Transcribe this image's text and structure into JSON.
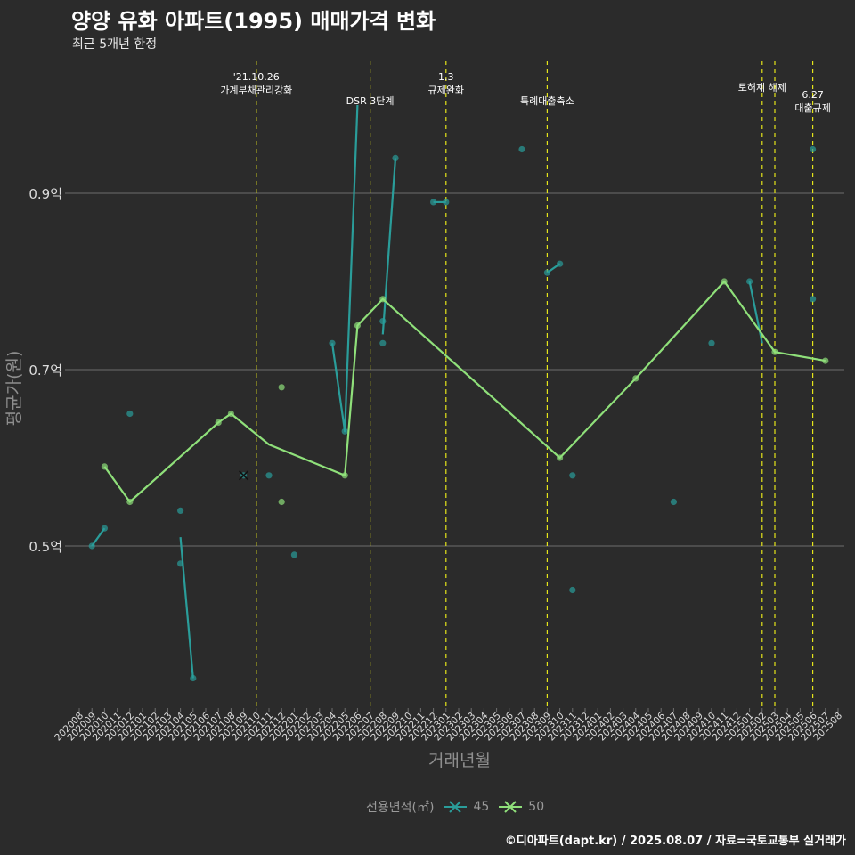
{
  "title": "양양 유화 아파트(1995) 매매가격 변화",
  "subtitle": "최근 5개년 한정",
  "caption": "©디아파트(dapt.kr) / 2025.08.07 / 자료=국토교통부 실거래가",
  "colors": {
    "background": "#2b2b2b",
    "grid": "#6e6e6e",
    "series_45": "#2a9d9a",
    "series_50": "#8fe07a",
    "event_line": "#e5e51a",
    "axis_text": "#dcdcdc",
    "axis_title": "#8e8e8e"
  },
  "chart_data": {
    "type": "line",
    "title": "양양 유화 아파트(1995) 매매가격 변화",
    "subtitle": "최근 5개년 한정",
    "xlabel": "거래년월",
    "ylabel": "평균가(원)",
    "y_ticks": [
      {
        "value": 0.5,
        "label": "0.5억"
      },
      {
        "value": 0.7,
        "label": "0.7억"
      },
      {
        "value": 0.9,
        "label": "0.9억"
      }
    ],
    "ylim": [
      0.33,
      1.0
    ],
    "grid": "horizontal",
    "legend_title": "전용면적(㎡)",
    "legend_position": "bottom",
    "x_categories": [
      "202008",
      "202009",
      "202010",
      "202011",
      "202012",
      "202101",
      "202102",
      "202103",
      "202104",
      "202105",
      "202106",
      "202107",
      "202108",
      "202109",
      "202110",
      "202111",
      "202112",
      "202201",
      "202202",
      "202203",
      "202204",
      "202205",
      "202206",
      "202207",
      "202208",
      "202209",
      "202210",
      "202211",
      "202212",
      "202301",
      "202302",
      "202303",
      "202304",
      "202305",
      "202306",
      "202307",
      "202308",
      "202309",
      "202310",
      "202311",
      "202312",
      "202401",
      "202402",
      "202403",
      "202404",
      "202405",
      "202406",
      "202407",
      "202408",
      "202409",
      "202410",
      "202411",
      "202412",
      "202501",
      "202502",
      "202503",
      "202504",
      "202505",
      "202506",
      "202507",
      "202508"
    ],
    "events": [
      {
        "x": "202110",
        "label": "'21.10.26\n가계부채관리강화",
        "label_row": 0
      },
      {
        "x": "202207",
        "label": "DSR 3단계",
        "label_row": 1
      },
      {
        "x": "202301",
        "label": "1.3\n규제완화",
        "label_row": 0
      },
      {
        "x": "202309",
        "label": "특례대출축소",
        "label_row": 1
      },
      {
        "x": "202502",
        "label": "토허제 해제",
        "label_row": 0
      },
      {
        "x": "202503",
        "label": "",
        "label_row": 0
      },
      {
        "x": "202506",
        "label": "6.27\n대출규제",
        "label_row": 2
      }
    ],
    "series": [
      {
        "name": "45",
        "line_segments": [
          [
            [
              "202009",
              0.5
            ],
            [
              "202010",
              0.52
            ]
          ],
          [
            [
              "202104",
              0.51
            ],
            [
              "202105",
              0.35
            ]
          ],
          [
            [
              "202204",
              0.73
            ],
            [
              "202205",
              0.63
            ],
            [
              "202206",
              1.0
            ]
          ],
          [
            [
              "202208",
              0.74
            ],
            [
              "202209",
              0.94
            ]
          ],
          [
            [
              "202212",
              0.89
            ],
            [
              "202301",
              0.89
            ]
          ],
          [
            [
              "202309",
              0.81
            ],
            [
              "202310",
              0.82
            ]
          ],
          [
            [
              "202501",
              0.8
            ],
            [
              "202502",
              0.73
            ]
          ]
        ],
        "points": [
          [
            "202009",
            0.5
          ],
          [
            "202010",
            0.52
          ],
          [
            "202012",
            0.65
          ],
          [
            "202104",
            0.54
          ],
          [
            "202104",
            0.48
          ],
          [
            "202105",
            0.35
          ],
          [
            "202111",
            0.58
          ],
          [
            "202201",
            0.49
          ],
          [
            "202204",
            0.73
          ],
          [
            "202205",
            0.63
          ],
          [
            "202208",
            0.755
          ],
          [
            "202208",
            0.73
          ],
          [
            "202209",
            0.94
          ],
          [
            "202212",
            0.89
          ],
          [
            "202301",
            0.89
          ],
          [
            "202307",
            0.95
          ],
          [
            "202309",
            0.81
          ],
          [
            "202310",
            0.82
          ],
          [
            "202311",
            0.58
          ],
          [
            "202311",
            0.45
          ],
          [
            "202407",
            0.55
          ],
          [
            "202410",
            0.73
          ],
          [
            "202501",
            0.8
          ],
          [
            "202506",
            0.95
          ],
          [
            "202506",
            0.78
          ]
        ],
        "cross_points": [
          [
            "202109",
            0.58
          ]
        ]
      },
      {
        "name": "50",
        "line_segments": [
          [
            [
              "202010",
              0.59
            ],
            [
              "202012",
              0.55
            ],
            [
              "202107",
              0.64
            ],
            [
              "202108",
              0.65
            ],
            [
              "202111",
              0.615
            ],
            [
              "202205",
              0.58
            ],
            [
              "202206",
              0.75
            ],
            [
              "202208",
              0.78
            ],
            [
              "202310",
              0.6
            ],
            [
              "202404",
              0.69
            ],
            [
              "202411",
              0.8
            ],
            [
              "202503",
              0.72
            ],
            [
              "202507",
              0.71
            ]
          ]
        ],
        "points": [
          [
            "202010",
            0.59
          ],
          [
            "202012",
            0.55
          ],
          [
            "202107",
            0.64
          ],
          [
            "202108",
            0.65
          ],
          [
            "202112",
            0.68
          ],
          [
            "202112",
            0.55
          ],
          [
            "202205",
            0.58
          ],
          [
            "202206",
            0.75
          ],
          [
            "202208",
            0.78
          ],
          [
            "202310",
            0.6
          ],
          [
            "202404",
            0.69
          ],
          [
            "202411",
            0.8
          ],
          [
            "202503",
            0.72
          ],
          [
            "202507",
            0.71
          ]
        ],
        "cross_points": []
      }
    ]
  }
}
